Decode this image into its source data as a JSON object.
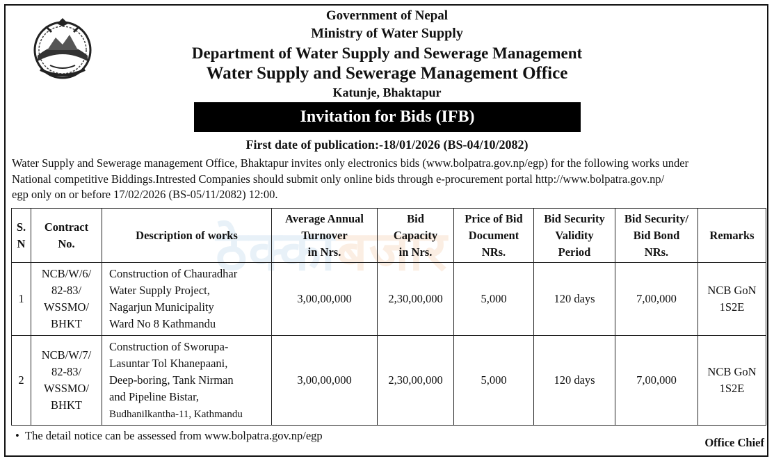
{
  "header": {
    "line1": "Government of Nepal",
    "line2": "Ministry of Water Supply",
    "line3": "Department of Water Supply and Sewerage Management",
    "line4": "Water Supply and Sewerage Management Office",
    "line5": "Katunje, Bhaktapur"
  },
  "banner": {
    "title": "Invitation for Bids (IFB)"
  },
  "publication": {
    "text": "First date of publication:-18/01/2026 (BS-04/10/2082)"
  },
  "intro": {
    "line1": "Water Supply and Sewerage management Office, Bhaktapur invites only electronics bids (www.bolpatra.gov.np/egp) for the following works under",
    "line2": "National competitive Biddings.Intrested Companies should submit only online bids through e-procurement portal    http://www.bolpatra.gov.np/",
    "line3": "egp only on or before 17/02/2026 (BS-05/11/2082) 12:00."
  },
  "table": {
    "headers": {
      "sn_a": "S.",
      "sn_b": "N",
      "contract_a": "Contract",
      "contract_b": "No.",
      "description": "Description of works",
      "turnover_a": "Average Annual",
      "turnover_b": "Turnover",
      "turnover_c": "in Nrs.",
      "capacity_a": "Bid",
      "capacity_b": "Capacity",
      "capacity_c": "in Nrs.",
      "price_a": "Price of Bid",
      "price_b": "Document",
      "price_c": "NRs.",
      "validity_a": "Bid Security",
      "validity_b": "Validity",
      "validity_c": "Period",
      "security_a": "Bid Security/",
      "security_b": "Bid  Bond",
      "security_c": "NRs.",
      "remarks": "Remarks"
    },
    "rows": [
      {
        "sn": "1",
        "contract": [
          "NCB/W/6/",
          "82-83/",
          "WSSMO/",
          "BHKT"
        ],
        "description": [
          "Construction of Chauradhar",
          "Water Supply Project,",
          "Nagarjun Municipality",
          "Ward No 8 Kathmandu"
        ],
        "turnover": "3,00,00,000",
        "capacity": "2,30,00,000",
        "price": "5,000",
        "validity": "120 days",
        "security": "7,00,000",
        "remarks": [
          "NCB GoN",
          "1S2E"
        ]
      },
      {
        "sn": "2",
        "contract": [
          "NCB/W/7/",
          "82-83/",
          "WSSMO/",
          "BHKT"
        ],
        "description": [
          "Construction of Sworupa-",
          "Lasuntar Tol Khanepaani,",
          "Deep-boring, Tank Nirman",
          "and Pipeline Bistar,",
          "Budhanilkantha-11, Kathmandu"
        ],
        "turnover": "3,00,00,000",
        "capacity": "2,30,00,000",
        "price": "5,000",
        "validity": "120 days",
        "security": "7,00,000",
        "remarks": [
          "NCB GoN",
          "1S2E"
        ]
      }
    ]
  },
  "footer": {
    "note": "The detail notice can be assessed from www.bolpatra.gov.np/egp",
    "signature": "Office Chief"
  },
  "watermark": {
    "part1": "ठेक्का",
    "part2": "बजार"
  },
  "colors": {
    "banner_bg": "#000000",
    "banner_text": "#ffffff",
    "watermark_blue": "#4a90c8",
    "watermark_orange": "#e67e22"
  }
}
